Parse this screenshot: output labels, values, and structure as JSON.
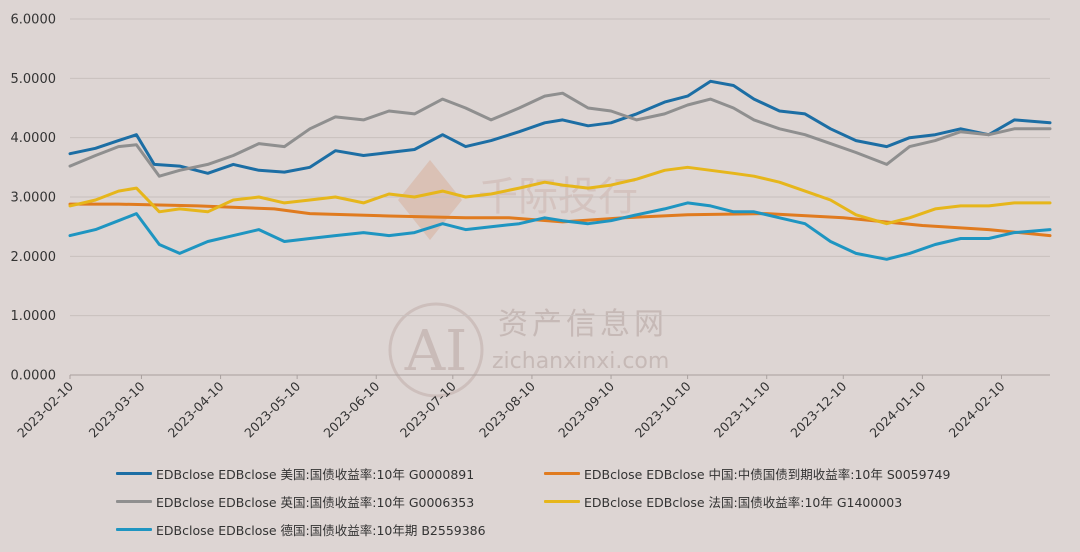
{
  "chart_data": {
    "type": "line",
    "title": "",
    "xlabel": "",
    "ylabel": "",
    "ylim": [
      0,
      6
    ],
    "yticks": [
      "0.0000",
      "1.0000",
      "2.0000",
      "3.0000",
      "4.0000",
      "5.0000",
      "6.0000"
    ],
    "xticks": [
      "2023-02-10",
      "2023-03-10",
      "2023-04-10",
      "2023-05-10",
      "2023-06-10",
      "2023-07-10",
      "2023-08-10",
      "2023-09-10",
      "2023-10-10",
      "2023-11-10",
      "2023-12-10",
      "2024-01-10",
      "2024-02-10"
    ],
    "xrange": [
      "2023-02-10",
      "2024-02-29"
    ],
    "grid": "horizontal",
    "legend_position": "bottom",
    "watermark": {
      "text_cn": "资产信息网",
      "text_en": "zichanxinxi.com",
      "logo": "AI",
      "brand": "千际投行"
    },
    "series": [
      {
        "name": "EDBclose EDBclose 美国:国债收益率:10年 G0000891",
        "color": "#1c6ea4",
        "x": [
          "2023-02-10",
          "2023-02-20",
          "2023-03-01",
          "2023-03-08",
          "2023-03-15",
          "2023-03-25",
          "2023-04-05",
          "2023-04-15",
          "2023-04-25",
          "2023-05-05",
          "2023-05-15",
          "2023-05-25",
          "2023-06-05",
          "2023-06-15",
          "2023-06-25",
          "2023-07-06",
          "2023-07-15",
          "2023-07-25",
          "2023-08-05",
          "2023-08-15",
          "2023-08-22",
          "2023-09-01",
          "2023-09-10",
          "2023-09-20",
          "2023-10-01",
          "2023-10-10",
          "2023-10-19",
          "2023-10-28",
          "2023-11-05",
          "2023-11-15",
          "2023-11-25",
          "2023-12-05",
          "2023-12-15",
          "2023-12-27",
          "2024-01-05",
          "2024-01-15",
          "2024-01-25",
          "2024-02-05",
          "2024-02-15",
          "2024-02-29"
        ],
        "values": [
          3.73,
          3.82,
          3.95,
          4.05,
          3.55,
          3.52,
          3.4,
          3.55,
          3.45,
          3.42,
          3.5,
          3.78,
          3.7,
          3.75,
          3.8,
          4.05,
          3.85,
          3.95,
          4.1,
          4.25,
          4.3,
          4.2,
          4.25,
          4.4,
          4.6,
          4.7,
          4.95,
          4.88,
          4.65,
          4.45,
          4.4,
          4.15,
          3.95,
          3.85,
          4.0,
          4.05,
          4.15,
          4.05,
          4.3,
          4.25
        ]
      },
      {
        "name": "EDBclose EDBclose 中国:中债国债到期收益率:10年 S0059749",
        "color": "#e07b1f",
        "x": [
          "2023-02-10",
          "2023-03-01",
          "2023-04-01",
          "2023-05-01",
          "2023-05-15",
          "2023-06-15",
          "2023-07-15",
          "2023-08-01",
          "2023-08-22",
          "2023-09-15",
          "2023-10-10",
          "2023-11-10",
          "2023-12-10",
          "2024-01-10",
          "2024-02-05",
          "2024-02-29"
        ],
        "values": [
          2.88,
          2.88,
          2.85,
          2.8,
          2.72,
          2.68,
          2.65,
          2.65,
          2.58,
          2.65,
          2.7,
          2.72,
          2.65,
          2.52,
          2.45,
          2.35
        ]
      },
      {
        "name": "EDBclose EDBclose 英国:国债收益率:10年 G0006353",
        "color": "#8f8f8f",
        "x": [
          "2023-02-10",
          "2023-02-20",
          "2023-03-01",
          "2023-03-08",
          "2023-03-17",
          "2023-03-25",
          "2023-04-05",
          "2023-04-15",
          "2023-04-25",
          "2023-05-05",
          "2023-05-15",
          "2023-05-25",
          "2023-06-05",
          "2023-06-15",
          "2023-06-25",
          "2023-07-06",
          "2023-07-15",
          "2023-07-25",
          "2023-08-05",
          "2023-08-15",
          "2023-08-22",
          "2023-09-01",
          "2023-09-10",
          "2023-09-20",
          "2023-10-01",
          "2023-10-10",
          "2023-10-19",
          "2023-10-28",
          "2023-11-05",
          "2023-11-15",
          "2023-11-25",
          "2023-12-05",
          "2023-12-15",
          "2023-12-27",
          "2024-01-05",
          "2024-01-15",
          "2024-01-25",
          "2024-02-05",
          "2024-02-15",
          "2024-02-29"
        ],
        "values": [
          3.52,
          3.7,
          3.85,
          3.88,
          3.35,
          3.45,
          3.55,
          3.7,
          3.9,
          3.85,
          4.15,
          4.35,
          4.3,
          4.45,
          4.4,
          4.65,
          4.5,
          4.3,
          4.5,
          4.7,
          4.75,
          4.5,
          4.45,
          4.3,
          4.4,
          4.55,
          4.65,
          4.5,
          4.3,
          4.15,
          4.05,
          3.9,
          3.75,
          3.55,
          3.85,
          3.95,
          4.1,
          4.05,
          4.15,
          4.15
        ]
      },
      {
        "name": "EDBclose EDBclose 法国:国债收益率:10年 G1400003",
        "color": "#e6b61b",
        "x": [
          "2023-02-10",
          "2023-02-20",
          "2023-03-01",
          "2023-03-08",
          "2023-03-17",
          "2023-03-25",
          "2023-04-05",
          "2023-04-15",
          "2023-04-25",
          "2023-05-05",
          "2023-05-15",
          "2023-05-25",
          "2023-06-05",
          "2023-06-15",
          "2023-06-25",
          "2023-07-06",
          "2023-07-15",
          "2023-07-25",
          "2023-08-05",
          "2023-08-15",
          "2023-08-22",
          "2023-09-01",
          "2023-09-10",
          "2023-09-20",
          "2023-10-01",
          "2023-10-10",
          "2023-10-19",
          "2023-10-28",
          "2023-11-05",
          "2023-11-15",
          "2023-11-25",
          "2023-12-05",
          "2023-12-15",
          "2023-12-27",
          "2024-01-05",
          "2024-01-15",
          "2024-01-25",
          "2024-02-05",
          "2024-02-15",
          "2024-02-29"
        ],
        "values": [
          2.85,
          2.95,
          3.1,
          3.15,
          2.75,
          2.8,
          2.75,
          2.95,
          3.0,
          2.9,
          2.95,
          3.0,
          2.9,
          3.05,
          3.0,
          3.1,
          3.0,
          3.05,
          3.15,
          3.25,
          3.2,
          3.15,
          3.2,
          3.3,
          3.45,
          3.5,
          3.45,
          3.4,
          3.35,
          3.25,
          3.1,
          2.95,
          2.7,
          2.55,
          2.65,
          2.8,
          2.85,
          2.85,
          2.9,
          2.9
        ]
      },
      {
        "name": "EDBclose EDBclose 德国:国债收益率:10年期 B2559386",
        "color": "#1e95c1",
        "x": [
          "2023-02-10",
          "2023-02-20",
          "2023-03-01",
          "2023-03-08",
          "2023-03-17",
          "2023-03-25",
          "2023-04-05",
          "2023-04-15",
          "2023-04-25",
          "2023-05-05",
          "2023-05-15",
          "2023-05-25",
          "2023-06-05",
          "2023-06-15",
          "2023-06-25",
          "2023-07-06",
          "2023-07-15",
          "2023-07-25",
          "2023-08-05",
          "2023-08-15",
          "2023-08-22",
          "2023-09-01",
          "2023-09-10",
          "2023-09-20",
          "2023-10-01",
          "2023-10-10",
          "2023-10-19",
          "2023-10-28",
          "2023-11-05",
          "2023-11-15",
          "2023-11-25",
          "2023-12-05",
          "2023-12-15",
          "2023-12-27",
          "2024-01-05",
          "2024-01-15",
          "2024-01-25",
          "2024-02-05",
          "2024-02-15",
          "2024-02-29"
        ],
        "values": [
          2.35,
          2.45,
          2.6,
          2.72,
          2.2,
          2.05,
          2.25,
          2.35,
          2.45,
          2.25,
          2.3,
          2.35,
          2.4,
          2.35,
          2.4,
          2.55,
          2.45,
          2.5,
          2.55,
          2.65,
          2.6,
          2.55,
          2.6,
          2.7,
          2.8,
          2.9,
          2.85,
          2.75,
          2.75,
          2.65,
          2.55,
          2.25,
          2.05,
          1.95,
          2.05,
          2.2,
          2.3,
          2.3,
          2.4,
          2.45
        ]
      }
    ]
  }
}
